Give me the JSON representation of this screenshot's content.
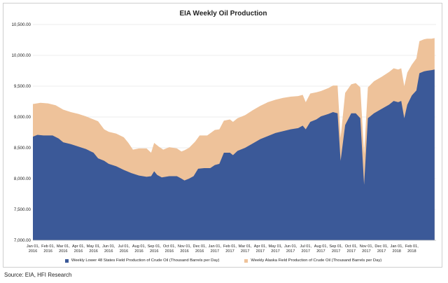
{
  "chart_data": {
    "type": "area",
    "title": "EIA Weekly Oil Production",
    "xlabel": "",
    "ylabel": "",
    "ylim": [
      7000,
      10500
    ],
    "y_ticks": [
      "10,500.00",
      "10,000.00",
      "9,500.00",
      "9,000.00",
      "8,500.00",
      "8,000.00",
      "7,500.00",
      "7,000.00"
    ],
    "x_ticks": [
      {
        "month": "Jan 01,",
        "year": "2016",
        "t": 0
      },
      {
        "month": "Feb 01,",
        "year": "2016",
        "t": 1
      },
      {
        "month": "Mar 01,",
        "year": "2016",
        "t": 2
      },
      {
        "month": "Apr 01,",
        "year": "2016",
        "t": 3
      },
      {
        "month": "May 01,",
        "year": "2016",
        "t": 4
      },
      {
        "month": "Jun 01,",
        "year": "2016",
        "t": 5
      },
      {
        "month": "Jul 01,",
        "year": "2016",
        "t": 6
      },
      {
        "month": "Aug 01,",
        "year": "2016",
        "t": 7
      },
      {
        "month": "Sep 01,",
        "year": "2016",
        "t": 8
      },
      {
        "month": "Oct 01,",
        "year": "2016",
        "t": 9
      },
      {
        "month": "Nov 01,",
        "year": "2016",
        "t": 10
      },
      {
        "month": "Dec 01,",
        "year": "2016",
        "t": 11
      },
      {
        "month": "Jan 01,",
        "year": "2017",
        "t": 12
      },
      {
        "month": "Feb 01,",
        "year": "2017",
        "t": 13
      },
      {
        "month": "Mar 01,",
        "year": "2017",
        "t": 14
      },
      {
        "month": "Apr 01,",
        "year": "2017",
        "t": 15
      },
      {
        "month": "May 01,",
        "year": "2017",
        "t": 16
      },
      {
        "month": "Jun 01,",
        "year": "2017",
        "t": 17
      },
      {
        "month": "Jul 01,",
        "year": "2017",
        "t": 18
      },
      {
        "month": "Aug 01,",
        "year": "2017",
        "t": 19
      },
      {
        "month": "Sep 01,",
        "year": "2017",
        "t": 20
      },
      {
        "month": "Oct 01,",
        "year": "2017",
        "t": 21
      },
      {
        "month": "Nov 01,",
        "year": "2017",
        "t": 22
      },
      {
        "month": "Dec 01,",
        "year": "2017",
        "t": 23
      },
      {
        "month": "Jan 01,",
        "year": "2018",
        "t": 24
      },
      {
        "month": "Feb 01,",
        "year": "2018",
        "t": 25
      }
    ],
    "x_max": 26.6,
    "series": [
      {
        "name": "Weekly Lower 48 States Field Production of Crude Oil (Thousand Barrels per Day)",
        "color": "#3b5998",
        "points": [
          [
            0,
            8680
          ],
          [
            0.3,
            8710
          ],
          [
            0.7,
            8700
          ],
          [
            1.3,
            8700
          ],
          [
            1.7,
            8650
          ],
          [
            2,
            8590
          ],
          [
            2.5,
            8560
          ],
          [
            3,
            8520
          ],
          [
            3.5,
            8480
          ],
          [
            4,
            8420
          ],
          [
            4.3,
            8330
          ],
          [
            4.7,
            8290
          ],
          [
            5,
            8240
          ],
          [
            5.5,
            8200
          ],
          [
            6,
            8140
          ],
          [
            6.5,
            8090
          ],
          [
            7,
            8050
          ],
          [
            7.5,
            8030
          ],
          [
            7.8,
            8040
          ],
          [
            8,
            8120
          ],
          [
            8.2,
            8060
          ],
          [
            8.5,
            8020
          ],
          [
            9,
            8040
          ],
          [
            9.5,
            8040
          ],
          [
            9.8,
            8000
          ],
          [
            10,
            7970
          ],
          [
            10.3,
            8000
          ],
          [
            10.6,
            8040
          ],
          [
            10.9,
            8160
          ],
          [
            11.3,
            8170
          ],
          [
            11.7,
            8170
          ],
          [
            12,
            8220
          ],
          [
            12.3,
            8240
          ],
          [
            12.6,
            8420
          ],
          [
            13,
            8420
          ],
          [
            13.2,
            8380
          ],
          [
            13.5,
            8450
          ],
          [
            14,
            8500
          ],
          [
            14.5,
            8570
          ],
          [
            15,
            8640
          ],
          [
            15.5,
            8690
          ],
          [
            16,
            8740
          ],
          [
            16.5,
            8770
          ],
          [
            17,
            8800
          ],
          [
            17.5,
            8820
          ],
          [
            17.8,
            8860
          ],
          [
            18,
            8800
          ],
          [
            18.3,
            8920
          ],
          [
            18.7,
            8960
          ],
          [
            19,
            9010
          ],
          [
            19.5,
            9050
          ],
          [
            19.8,
            9080
          ],
          [
            20.1,
            9060
          ],
          [
            20.3,
            8290
          ],
          [
            20.6,
            8870
          ],
          [
            21,
            9060
          ],
          [
            21.3,
            9060
          ],
          [
            21.6,
            8980
          ],
          [
            21.85,
            7900
          ],
          [
            22.1,
            8980
          ],
          [
            22.5,
            9060
          ],
          [
            23,
            9130
          ],
          [
            23.5,
            9200
          ],
          [
            23.8,
            9260
          ],
          [
            24.1,
            9240
          ],
          [
            24.3,
            9260
          ],
          [
            24.5,
            8980
          ],
          [
            24.7,
            9200
          ],
          [
            25,
            9350
          ],
          [
            25.3,
            9430
          ],
          [
            25.5,
            9710
          ],
          [
            25.8,
            9740
          ],
          [
            26,
            9750
          ],
          [
            26.3,
            9760
          ],
          [
            26.5,
            9770
          ]
        ]
      },
      {
        "name": "Weekly Alaska Field Production of Crude Oil (Thousand Barrels per Day)",
        "color": "#eec29a",
        "points": [
          [
            0,
            9210
          ],
          [
            0.5,
            9230
          ],
          [
            1,
            9220
          ],
          [
            1.5,
            9190
          ],
          [
            2,
            9120
          ],
          [
            2.5,
            9080
          ],
          [
            3,
            9050
          ],
          [
            3.5,
            9010
          ],
          [
            4,
            8960
          ],
          [
            4.3,
            8930
          ],
          [
            4.7,
            8800
          ],
          [
            5,
            8760
          ],
          [
            5.5,
            8730
          ],
          [
            6,
            8670
          ],
          [
            6.3,
            8580
          ],
          [
            6.6,
            8470
          ],
          [
            7,
            8490
          ],
          [
            7.5,
            8490
          ],
          [
            7.8,
            8420
          ],
          [
            8,
            8580
          ],
          [
            8.3,
            8520
          ],
          [
            8.6,
            8470
          ],
          [
            9,
            8510
          ],
          [
            9.5,
            8490
          ],
          [
            9.8,
            8440
          ],
          [
            10,
            8460
          ],
          [
            10.3,
            8500
          ],
          [
            10.7,
            8600
          ],
          [
            11,
            8700
          ],
          [
            11.5,
            8700
          ],
          [
            12,
            8790
          ],
          [
            12.3,
            8800
          ],
          [
            12.6,
            8940
          ],
          [
            13,
            8960
          ],
          [
            13.2,
            8920
          ],
          [
            13.5,
            8980
          ],
          [
            14,
            9030
          ],
          [
            14.5,
            9110
          ],
          [
            15,
            9180
          ],
          [
            15.5,
            9240
          ],
          [
            16,
            9280
          ],
          [
            16.5,
            9310
          ],
          [
            17,
            9330
          ],
          [
            17.5,
            9340
          ],
          [
            17.8,
            9360
          ],
          [
            18,
            9240
          ],
          [
            18.3,
            9380
          ],
          [
            18.7,
            9400
          ],
          [
            19,
            9420
          ],
          [
            19.5,
            9470
          ],
          [
            19.8,
            9510
          ],
          [
            20.1,
            9510
          ],
          [
            20.3,
            8660
          ],
          [
            20.6,
            9390
          ],
          [
            21,
            9530
          ],
          [
            21.3,
            9550
          ],
          [
            21.6,
            9480
          ],
          [
            21.85,
            8400
          ],
          [
            22.1,
            9480
          ],
          [
            22.5,
            9580
          ],
          [
            23,
            9650
          ],
          [
            23.5,
            9730
          ],
          [
            23.8,
            9790
          ],
          [
            24.1,
            9770
          ],
          [
            24.3,
            9790
          ],
          [
            24.5,
            9500
          ],
          [
            24.7,
            9720
          ],
          [
            25,
            9850
          ],
          [
            25.3,
            9950
          ],
          [
            25.5,
            10230
          ],
          [
            25.8,
            10260
          ],
          [
            26,
            10270
          ],
          [
            26.3,
            10270
          ],
          [
            26.5,
            10280
          ]
        ]
      }
    ]
  },
  "source": "Source: EIA, HFI Research"
}
